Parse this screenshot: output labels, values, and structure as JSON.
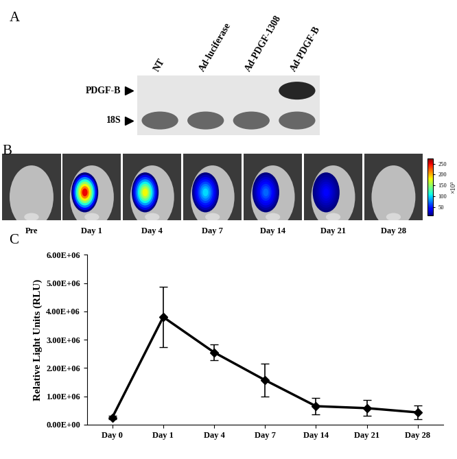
{
  "figure": {
    "panel_labels": [
      "A",
      "B",
      "C"
    ]
  },
  "blot": {
    "lanes": [
      "NT",
      "Ad-luciferase",
      "Ad-PDGF-1308",
      "Ad-PDGF-B"
    ],
    "bands": [
      {
        "label": "PDGF-B",
        "signal": [
          0,
          0,
          0,
          1
        ]
      },
      {
        "label": "18S",
        "signal": [
          0.7,
          0.7,
          0.7,
          0.7
        ]
      }
    ]
  },
  "imaging": {
    "labels": [
      "Pre",
      "Day 1",
      "Day 4",
      "Day 7",
      "Day 14",
      "Day 21",
      "Day 28"
    ],
    "peak": [
      null,
      250,
      180,
      100,
      70,
      40,
      null
    ],
    "colorbar": {
      "range": [
        10,
        275
      ],
      "ticks": [
        50,
        100,
        150,
        200,
        250
      ],
      "label": "×10³"
    }
  },
  "chart_data": {
    "type": "line",
    "categories": [
      "Day 0",
      "Day 1",
      "Day 4",
      "Day 7",
      "Day 14",
      "Day 21",
      "Day 28"
    ],
    "values": [
      250000,
      3800000,
      2550000,
      1570000,
      650000,
      580000,
      430000
    ],
    "error": [
      50000,
      1070000,
      280000,
      580000,
      300000,
      280000,
      250000
    ],
    "color": "#000000",
    "marker": "D",
    "line_style": "solid",
    "y_label": "Relative Light Units (RLU)",
    "ylim": [
      0,
      6000000
    ],
    "yticks": [
      {
        "value": 0,
        "label": "0.00E+00"
      },
      {
        "value": 1000000,
        "label": "1.00E+06"
      },
      {
        "value": 2000000,
        "label": "2.00E+06"
      },
      {
        "value": 3000000,
        "label": "3.00E+06"
      },
      {
        "value": 4000000,
        "label": "4.00E+06"
      },
      {
        "value": 5000000,
        "label": "5.00E+06"
      },
      {
        "value": 6000000,
        "label": "6.00E+06"
      }
    ],
    "grid": false
  }
}
